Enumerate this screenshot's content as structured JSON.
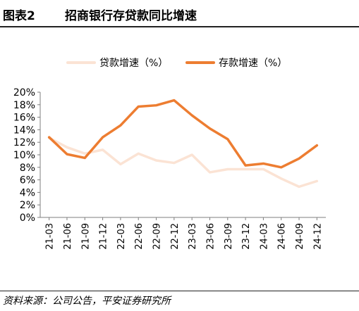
{
  "header": {
    "figure_no": "图表2",
    "title": "招商银行存贷款同比增速"
  },
  "footer": {
    "source": "资料来源：公司公告，平安证券研究所"
  },
  "chart_data": {
    "type": "line",
    "title": "",
    "xlabel": "",
    "ylabel": "",
    "categories": [
      "21-03",
      "21-06",
      "21-09",
      "21-12",
      "22-03",
      "22-06",
      "22-09",
      "22-12",
      "23-03",
      "23-06",
      "23-09",
      "23-12",
      "24-03",
      "24-06",
      "24-09",
      "24-12"
    ],
    "ylim": [
      0,
      20
    ],
    "yticks": [
      0,
      2,
      4,
      6,
      8,
      10,
      12,
      14,
      16,
      18,
      20
    ],
    "ytick_labels": [
      "0%",
      "2%",
      "4%",
      "6%",
      "8%",
      "10%",
      "12%",
      "14%",
      "16%",
      "18%",
      "20%"
    ],
    "legend_position": "top-center",
    "grid": false,
    "series": [
      {
        "name": "贷款增速（%）",
        "color": "#FBE3D4",
        "values": [
          12.7,
          11.2,
          10.2,
          10.8,
          8.5,
          10.2,
          9.1,
          8.7,
          10.0,
          7.2,
          7.7,
          7.7,
          7.7,
          6.2,
          4.9,
          5.8
        ]
      },
      {
        "name": "存款增速（%）",
        "color": "#ED7D31",
        "values": [
          12.8,
          10.1,
          9.5,
          12.8,
          14.7,
          17.7,
          17.9,
          18.7,
          16.3,
          14.2,
          12.5,
          8.3,
          8.6,
          8.0,
          9.4,
          11.5
        ]
      }
    ]
  }
}
